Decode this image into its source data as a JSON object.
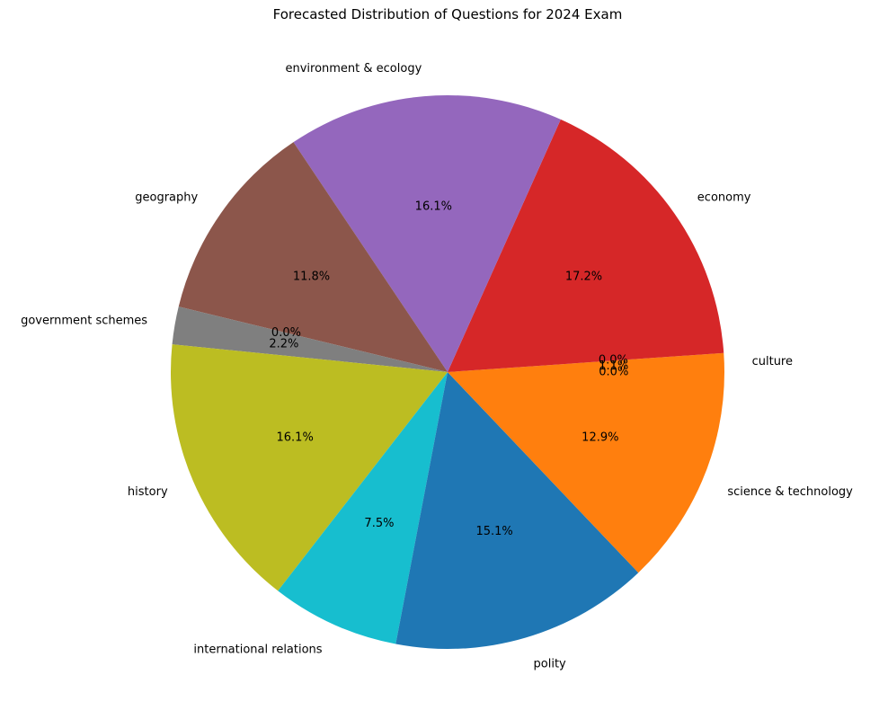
{
  "chart_data": {
    "type": "pie",
    "title": "Forecasted Distribution of Questions for 2024 Exam",
    "start_angle_deg": 0,
    "direction": "counterclockwise",
    "slices": [
      {
        "label": "culture",
        "value": 1.1,
        "pct_label": "1.1%",
        "color": "#ff7f0e"
      },
      {
        "label": "",
        "value": 0.0,
        "pct_label": "0.0%",
        "color": "#2ca02c"
      },
      {
        "label": "economy",
        "value": 17.2,
        "pct_label": "17.2%",
        "color": "#d62728"
      },
      {
        "label": "environment & ecology",
        "value": 16.1,
        "pct_label": "16.1%",
        "color": "#9467bd"
      },
      {
        "label": "geography",
        "value": 11.8,
        "pct_label": "11.8%",
        "color": "#8c564b"
      },
      {
        "label": "",
        "value": 0.0,
        "pct_label": "0.0%",
        "color": "#e377c2"
      },
      {
        "label": "government schemes",
        "value": 2.2,
        "pct_label": "2.2%",
        "color": "#7f7f7f"
      },
      {
        "label": "history",
        "value": 16.1,
        "pct_label": "16.1%",
        "color": "#bcbd22"
      },
      {
        "label": "international relations",
        "value": 7.5,
        "pct_label": "7.5%",
        "color": "#17becf"
      },
      {
        "label": "polity",
        "value": 15.1,
        "pct_label": "15.1%",
        "color": "#1f77b4"
      },
      {
        "label": "science & technology",
        "value": 12.9,
        "pct_label": "12.9%",
        "color": "#ff7f0e"
      },
      {
        "label": "",
        "value": 0.0,
        "pct_label": "0.0%",
        "color": "#2ca02c"
      }
    ]
  }
}
